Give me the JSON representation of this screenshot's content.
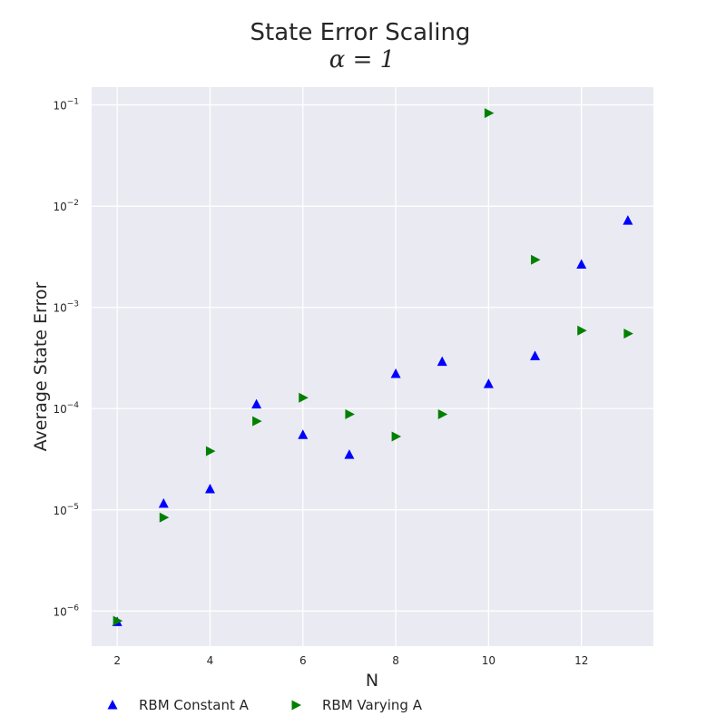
{
  "chart_data": {
    "type": "scatter",
    "title": "State Error Scaling",
    "subtitle": "α = 1",
    "xlabel": "N",
    "ylabel": "Average State Error",
    "xlim": [
      1.45,
      13.55
    ],
    "ylim": [
      4.5e-07,
      0.15
    ],
    "yscale": "log",
    "grid": true,
    "legend_position": "bottom-left",
    "x_ticks": [
      2,
      4,
      6,
      8,
      10,
      12
    ],
    "y_ticks": [
      {
        "base": "10",
        "exp": "−6",
        "value": 1e-06
      },
      {
        "base": "10",
        "exp": "−5",
        "value": 1e-05
      },
      {
        "base": "10",
        "exp": "−4",
        "value": 0.0001
      },
      {
        "base": "10",
        "exp": "−3",
        "value": 0.001
      },
      {
        "base": "10",
        "exp": "−2",
        "value": 0.01
      },
      {
        "base": "10",
        "exp": "−1",
        "value": 0.1
      }
    ],
    "series": [
      {
        "name": "RBM Constant A",
        "marker": "triangle-up",
        "color": "#0000ff",
        "x": [
          2,
          3,
          4,
          5,
          6,
          7,
          8,
          9,
          10,
          11,
          12,
          13
        ],
        "y": [
          7.8e-07,
          1.15e-05,
          1.6e-05,
          0.00011,
          5.5e-05,
          3.5e-05,
          0.00022,
          0.00029,
          0.000175,
          0.00033,
          0.00265,
          0.0072
        ]
      },
      {
        "name": "RBM Varying A",
        "marker": "triangle-right",
        "color": "#008000",
        "x": [
          2,
          3,
          4,
          5,
          6,
          7,
          8,
          9,
          10,
          11,
          12,
          13
        ],
        "y": [
          8e-07,
          8.4e-06,
          3.8e-05,
          7.5e-05,
          0.000128,
          8.8e-05,
          5.3e-05,
          8.8e-05,
          0.083,
          0.00295,
          0.00059,
          0.00055
        ]
      }
    ]
  },
  "theme": {
    "plot_background": "#eaeaf2",
    "grid_color": "#ffffff",
    "text_color": "#262626"
  }
}
